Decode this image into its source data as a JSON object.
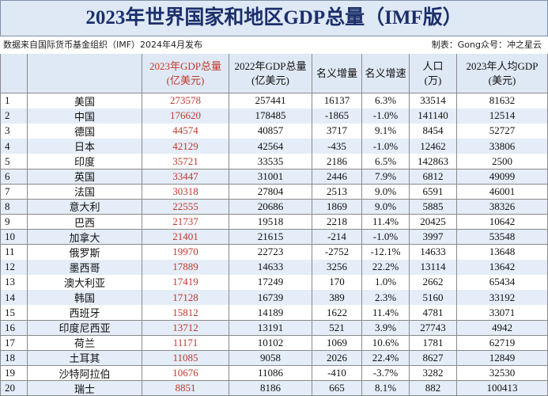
{
  "header": {
    "title": "2023年世界国家和地区GDP总量（IMF版）",
    "source": "数据来自国际货币基金组织（IMF）2024年4月发布",
    "credit": "制表：Gong众号：冲之星云"
  },
  "table": {
    "columns": [
      [
        "2023年GDP总量",
        "(亿美元)"
      ],
      [
        "2022年GDP总量",
        "(亿美元)"
      ],
      [
        "名义增量"
      ],
      [
        "名义增速"
      ],
      [
        "人口",
        "(万)"
      ],
      [
        "2023年人均GDP",
        "(美元)"
      ]
    ],
    "rows": [
      [
        "1",
        "美国",
        "273578",
        "257441",
        "16137",
        "6.3%",
        "33514",
        "81632"
      ],
      [
        "2",
        "中国",
        "176620",
        "178485",
        "-1865",
        "-1.0%",
        "141140",
        "12514"
      ],
      [
        "3",
        "德国",
        "44574",
        "40857",
        "3717",
        "9.1%",
        "8454",
        "52727"
      ],
      [
        "4",
        "日本",
        "42129",
        "42564",
        "-435",
        "-1.0%",
        "12462",
        "33806"
      ],
      [
        "5",
        "印度",
        "35721",
        "33535",
        "2186",
        "6.5%",
        "142863",
        "2500"
      ],
      [
        "6",
        "英国",
        "33447",
        "31001",
        "2446",
        "7.9%",
        "6812",
        "49099"
      ],
      [
        "7",
        "法国",
        "30318",
        "27804",
        "2513",
        "9.0%",
        "6591",
        "46001"
      ],
      [
        "8",
        "意大利",
        "22555",
        "20686",
        "1869",
        "9.0%",
        "5885",
        "38326"
      ],
      [
        "9",
        "巴西",
        "21737",
        "19518",
        "2218",
        "11.4%",
        "20425",
        "10642"
      ],
      [
        "10",
        "加拿大",
        "21401",
        "21615",
        "-214",
        "-1.0%",
        "3997",
        "53548"
      ],
      [
        "11",
        "俄罗斯",
        "19970",
        "22723",
        "-2752",
        "-12.1%",
        "14633",
        "13648"
      ],
      [
        "12",
        "墨西哥",
        "17889",
        "14633",
        "3256",
        "22.2%",
        "13114",
        "13642"
      ],
      [
        "13",
        "澳大利亚",
        "17419",
        "17249",
        "170",
        "1.0%",
        "2662",
        "65434"
      ],
      [
        "14",
        "韩国",
        "17128",
        "16739",
        "389",
        "2.3%",
        "5160",
        "33192"
      ],
      [
        "15",
        "西班牙",
        "15812",
        "14189",
        "1622",
        "11.4%",
        "4781",
        "33071"
      ],
      [
        "16",
        "印度尼西亚",
        "13712",
        "13191",
        "521",
        "3.9%",
        "27743",
        "4942"
      ],
      [
        "17",
        "荷兰",
        "11171",
        "10102",
        "1069",
        "10.6%",
        "1781",
        "62719"
      ],
      [
        "18",
        "土耳其",
        "11085",
        "9058",
        "2026",
        "22.4%",
        "8627",
        "12849"
      ],
      [
        "19",
        "沙特阿拉伯",
        "10676",
        "11086",
        "-410",
        "-3.7%",
        "3282",
        "32530"
      ],
      [
        "20",
        "瑞士",
        "8851",
        "8186",
        "665",
        "8.1%",
        "882",
        "100413"
      ]
    ]
  }
}
